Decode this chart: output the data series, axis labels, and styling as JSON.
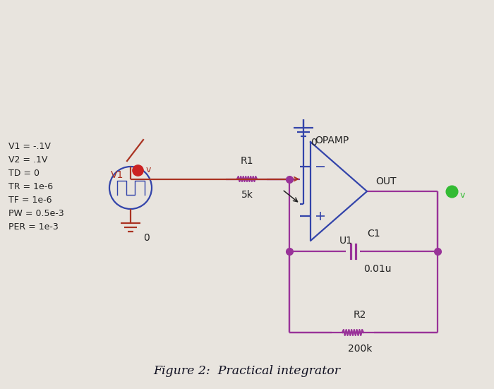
{
  "title": "Figure 2:  Practical integrator",
  "bg_color": "#e8e4de",
  "wire_blue": "#3344aa",
  "wire_red": "#aa3322",
  "wire_purple": "#993399",
  "wire_brown": "#884422",
  "node_red": "#cc2222",
  "node_green": "#33bb33",
  "node_purple": "#993399",
  "label_color": "#222222",
  "v1_params": "V1 = -.1V\nV2 = .1V\nTD = 0\nTR = 1e-6\nTF = 1e-6\nPW = 0.5e-3\nPER = 1e-3",
  "r1_label": "R1",
  "r1_value": "5k",
  "r2_label": "R2",
  "r2_value": "200k",
  "c1_label": "C1",
  "c1_value": "0.01u",
  "opamp_label": "OPAMP",
  "u1_label": "U1",
  "out_label": "OUT",
  "gnd_label": "0"
}
